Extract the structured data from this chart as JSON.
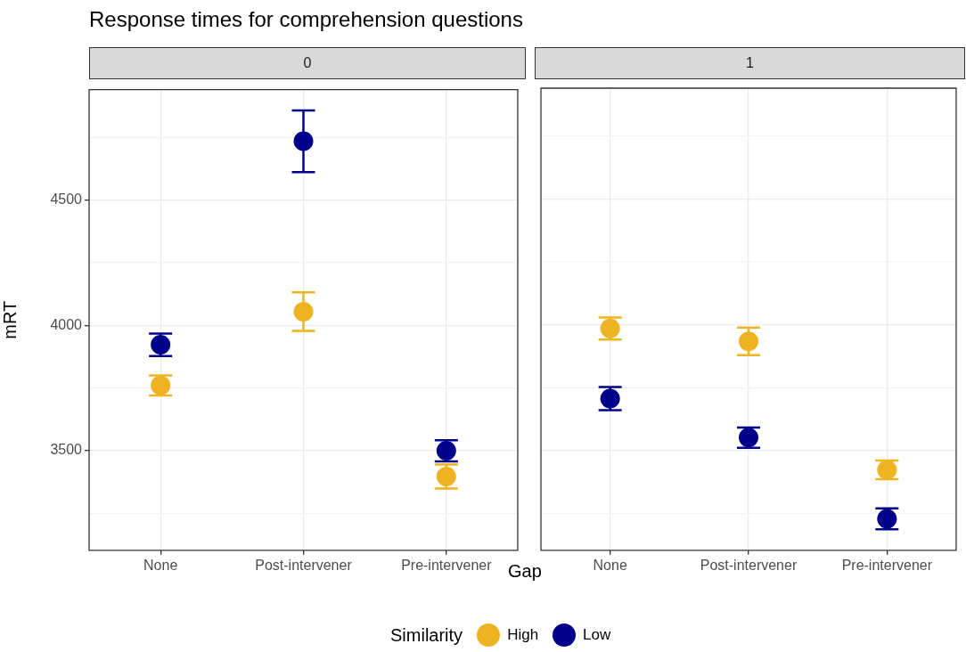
{
  "chart_data": [
    {
      "type": "scatter",
      "title": "Response times for comprehension questions",
      "subtitle": "0",
      "xlabel": "Gap",
      "ylabel": "mRT",
      "legend_title": "Similarity",
      "legend": "bottom",
      "marker": "circle",
      "grid": true,
      "categories": [
        "None",
        "Post-intervener",
        "Pre-intervener"
      ],
      "ylim": [
        3103,
        4941
      ],
      "yticks": [
        {
          "value": 3250,
          "label": null
        },
        3500,
        {
          "value": 3750,
          "label": null
        },
        4000,
        {
          "value": 4250,
          "label": null
        },
        4500,
        {
          "value": 4750,
          "label": null
        }
      ],
      "series": [
        {
          "name": "High",
          "color": "#efb321",
          "values": [
            3761,
            4055,
            3397
          ],
          "errors": [
            40,
            77,
            48
          ]
        },
        {
          "name": "Low",
          "color": "#00008b",
          "values": [
            3923,
            4735,
            3500
          ],
          "errors": [
            45,
            123,
            42
          ]
        }
      ]
    },
    {
      "type": "scatter",
      "subtitle": "1",
      "marker": "circle",
      "grid": true,
      "tick_labels": "x",
      "categories": [
        "None",
        "Post-intervener",
        "Pre-intervener"
      ],
      "ylim": [
        3103,
        4941
      ],
      "yticks": [
        {
          "value": 3250,
          "label": null
        },
        3500,
        {
          "value": 3750,
          "label": null
        },
        4000,
        {
          "value": 4250,
          "label": null
        },
        4500,
        {
          "value": 4750,
          "label": null
        }
      ],
      "series": [
        {
          "color": "#efb321",
          "values": [
            3985,
            3934,
            3423
          ],
          "errors": [
            44,
            55,
            37
          ]
        },
        {
          "color": "#00008b",
          "values": [
            3706,
            3551,
            3228
          ],
          "errors": [
            46,
            40,
            42
          ]
        }
      ]
    }
  ]
}
